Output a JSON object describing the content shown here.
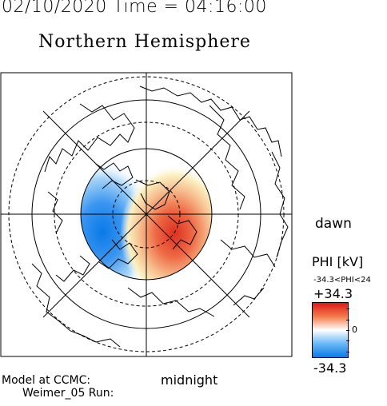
{
  "header": {
    "datetime": "02/10/2020 Time = 04:16:00",
    "title": "Northern Hemisphere"
  },
  "labels": {
    "dawn": "dawn",
    "midnight": "midnight",
    "model_line1": "Model at CCMC:",
    "model_line2": "Weimer_05 Run:"
  },
  "colorbar": {
    "title": "PHI [kV]",
    "range": "-34.3<PHI<24",
    "max": "+34.3",
    "zero": "0",
    "min": "-34.3",
    "max_value": 34.3,
    "min_value": -34.3,
    "colors": {
      "positive": "#dd1a1a",
      "zero": "#ffffff",
      "negative": "#0a7ae8"
    }
  }
}
